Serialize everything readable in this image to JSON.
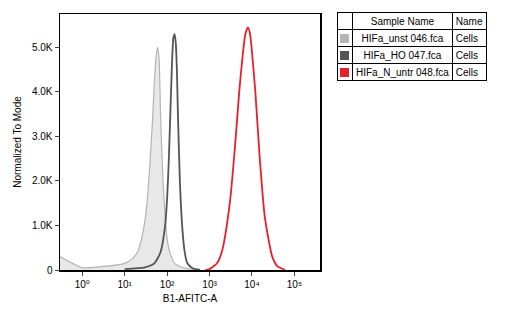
{
  "chart_data": {
    "type": "line",
    "xlabel": "B1-AFITC-A",
    "ylabel": "Normalized To Mode",
    "log": "x",
    "xlim": [
      0.3,
      400000
    ],
    "xticks": [
      {
        "value": 1,
        "label": "10⁰"
      },
      {
        "value": 10,
        "label": "10¹"
      },
      {
        "value": 100,
        "label": "10²"
      },
      {
        "value": 1000,
        "label": "10³"
      },
      {
        "value": 10000,
        "label": "10⁴"
      },
      {
        "value": 100000,
        "label": "10⁵"
      }
    ],
    "ylim": [
      0,
      5750
    ],
    "yticks": [
      0,
      {
        "value": 1000,
        "label": "1.0K"
      },
      {
        "value": 2000,
        "label": "2.0K"
      },
      {
        "value": 3000,
        "label": "3.0K"
      },
      {
        "value": 4000,
        "label": "4.0K"
      },
      {
        "value": 5000,
        "label": "5.0K"
      }
    ],
    "grid": false,
    "legend_headers": [
      "Sample Name",
      "Name"
    ],
    "series": [
      {
        "name": "HIFa_unst 046.fca",
        "population": "Cells",
        "type": "area",
        "color": "#b4b4b4",
        "x": [
          0.3,
          1,
          3,
          5,
          10,
          15,
          20,
          25,
          30,
          35,
          40,
          45,
          50,
          55,
          60,
          65,
          70,
          80,
          90,
          100,
          120,
          150,
          200,
          300,
          500
        ],
        "values": [
          300,
          50,
          80,
          100,
          150,
          250,
          400,
          700,
          1100,
          1700,
          2500,
          3300,
          4200,
          4800,
          5000,
          4700,
          3500,
          2000,
          1200,
          700,
          350,
          150,
          80,
          30,
          10
        ]
      },
      {
        "name": "HIFa_HO 047.fca",
        "population": "Cells",
        "type": "line",
        "color": "#555555",
        "x": [
          10,
          30,
          50,
          70,
          90,
          100,
          110,
          120,
          130,
          140,
          150,
          160,
          170,
          180,
          200,
          230,
          260,
          300,
          400,
          600
        ],
        "values": [
          20,
          60,
          150,
          400,
          1000,
          1600,
          2500,
          3600,
          4600,
          5200,
          5300,
          5100,
          4500,
          3500,
          2000,
          900,
          400,
          150,
          40,
          5
        ]
      },
      {
        "name": "HIFa_N_untr 048.fca",
        "population": "Cells",
        "type": "line",
        "color": "#e8202a",
        "x": [
          800,
          1000,
          1500,
          2000,
          3000,
          4000,
          5000,
          6000,
          7000,
          8000,
          9000,
          10000,
          12000,
          15000,
          20000,
          30000,
          40000,
          60000
        ],
        "values": [
          0,
          20,
          150,
          450,
          1500,
          2800,
          4000,
          4800,
          5300,
          5450,
          5300,
          4900,
          4000,
          2600,
          1200,
          300,
          80,
          5
        ]
      }
    ]
  }
}
